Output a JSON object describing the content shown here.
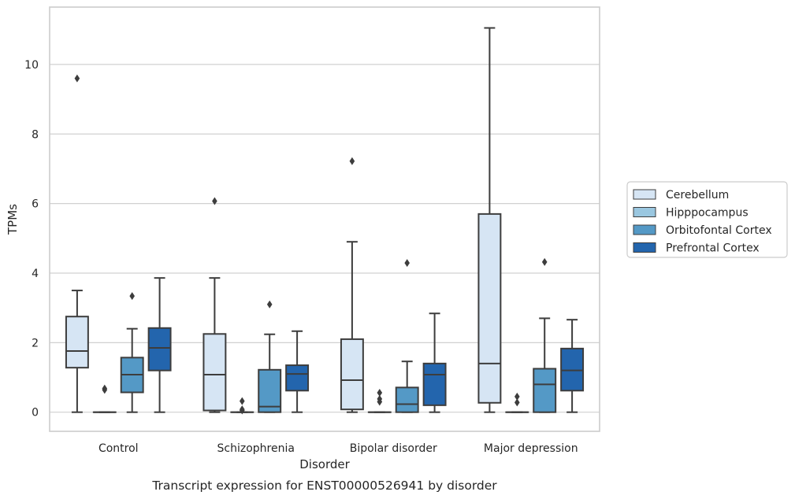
{
  "chart_data": {
    "type": "box",
    "caption": "Transcript expression for ENST00000526941 by disorder",
    "xlabel": "Disorder",
    "ylabel": "TPMs",
    "ylim": [
      -0.55,
      11.65
    ],
    "yticks": [
      0,
      2,
      4,
      6,
      8,
      10
    ],
    "grid": "horizontal",
    "legend_position": "right",
    "categories": [
      "Control",
      "Schizophrenia",
      "Bipolar disorder",
      "Major depression"
    ],
    "series": [
      {
        "name": "Cerebellum",
        "color": "#d6e5f4",
        "boxes": [
          {
            "whisker_low": 0,
            "q1": 1.28,
            "median": 1.76,
            "q3": 2.75,
            "whisker_high": 3.5,
            "outliers": [
              9.6
            ]
          },
          {
            "whisker_low": 0,
            "q1": 0.05,
            "median": 1.08,
            "q3": 2.25,
            "whisker_high": 3.86,
            "outliers": [
              6.07
            ]
          },
          {
            "whisker_low": 0,
            "q1": 0.08,
            "median": 0.92,
            "q3": 2.1,
            "whisker_high": 4.9,
            "outliers": [
              7.22
            ]
          },
          {
            "whisker_low": 0,
            "q1": 0.27,
            "median": 1.4,
            "q3": 5.7,
            "whisker_high": 11.05,
            "outliers": []
          }
        ]
      },
      {
        "name": "Hipppocampus",
        "color": "#9ac7e0",
        "boxes": [
          {
            "whisker_low": 0,
            "q1": 0,
            "median": 0,
            "q3": 0,
            "whisker_high": 0,
            "outliers": [
              0.68,
              0.64
            ]
          },
          {
            "whisker_low": 0,
            "q1": 0,
            "median": 0,
            "q3": 0,
            "whisker_high": 0,
            "outliers": [
              0.32,
              0.08,
              0.05
            ]
          },
          {
            "whisker_low": 0,
            "q1": 0,
            "median": 0,
            "q3": 0,
            "whisker_high": 0,
            "outliers": [
              0.56,
              0.38,
              0.3
            ]
          },
          {
            "whisker_low": 0,
            "q1": 0,
            "median": 0,
            "q3": 0,
            "whisker_high": 0,
            "outliers": [
              0.45,
              0.28
            ]
          }
        ]
      },
      {
        "name": "Orbitofontal Cortex",
        "color": "#5499c6",
        "boxes": [
          {
            "whisker_low": 0,
            "q1": 0.57,
            "median": 1.08,
            "q3": 1.57,
            "whisker_high": 2.4,
            "outliers": [
              3.34
            ]
          },
          {
            "whisker_low": 0,
            "q1": 0,
            "median": 0.16,
            "q3": 1.22,
            "whisker_high": 2.24,
            "outliers": [
              3.1
            ]
          },
          {
            "whisker_low": 0,
            "q1": 0,
            "median": 0.23,
            "q3": 0.71,
            "whisker_high": 1.46,
            "outliers": [
              4.29
            ]
          },
          {
            "whisker_low": 0,
            "q1": 0,
            "median": 0.8,
            "q3": 1.25,
            "whisker_high": 2.7,
            "outliers": [
              4.32
            ]
          }
        ]
      },
      {
        "name": "Prefrontal Cortex",
        "color": "#2365ad",
        "boxes": [
          {
            "whisker_low": 0,
            "q1": 1.2,
            "median": 1.85,
            "q3": 2.42,
            "whisker_high": 3.86,
            "outliers": []
          },
          {
            "whisker_low": 0,
            "q1": 0.62,
            "median": 1.1,
            "q3": 1.35,
            "whisker_high": 2.33,
            "outliers": []
          },
          {
            "whisker_low": 0,
            "q1": 0.2,
            "median": 1.08,
            "q3": 1.4,
            "whisker_high": 2.84,
            "outliers": []
          },
          {
            "whisker_low": 0,
            "q1": 0.62,
            "median": 1.2,
            "q3": 1.83,
            "whisker_high": 2.66,
            "outliers": []
          }
        ]
      }
    ]
  }
}
